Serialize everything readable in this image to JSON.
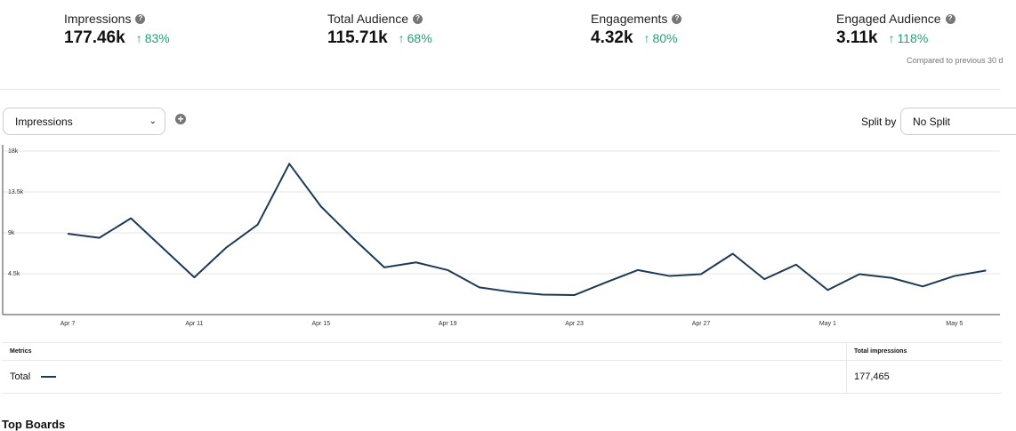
{
  "kpis": [
    {
      "label": "Impressions",
      "value": "177.46k",
      "change": "83%"
    },
    {
      "label": "Total Audience",
      "value": "115.71k",
      "change": "68%"
    },
    {
      "label": "Engagements",
      "value": "4.32k",
      "change": "80%"
    },
    {
      "label": "Engaged Audience",
      "value": "3.11k",
      "change": "118%"
    }
  ],
  "compared_note": "Compared to previous 30 d",
  "controls": {
    "metric_select": "Impressions",
    "split_label": "Split by",
    "split_select": "No Split"
  },
  "chart_data": {
    "type": "line",
    "title": "",
    "xlabel": "",
    "ylabel": "",
    "ylim": [
      0,
      18000
    ],
    "y_ticks": [
      "18k",
      "13.5k",
      "9k",
      "4.5k"
    ],
    "x_ticks": [
      "Apr 7",
      "Apr 11",
      "Apr 15",
      "Apr 19",
      "Apr 23",
      "Apr 27",
      "May 1",
      "May 5"
    ],
    "grid": true,
    "legend": "none",
    "x": [
      "Apr 7",
      "Apr 8",
      "Apr 9",
      "Apr 10",
      "Apr 11",
      "Apr 12",
      "Apr 13",
      "Apr 14",
      "Apr 15",
      "Apr 16",
      "Apr 17",
      "Apr 18",
      "Apr 19",
      "Apr 20",
      "Apr 21",
      "Apr 22",
      "Apr 23",
      "Apr 24",
      "Apr 25",
      "Apr 26",
      "Apr 27",
      "Apr 28",
      "Apr 29",
      "Apr 30",
      "May 1",
      "May 2",
      "May 3",
      "May 4",
      "May 5",
      "May 6"
    ],
    "series": [
      {
        "values": [
          8900,
          8450,
          10600,
          7350,
          4100,
          7350,
          9900,
          16600,
          11900,
          8450,
          5200,
          5750,
          4900,
          3000,
          2500,
          2200,
          2150,
          3550,
          4900,
          4250,
          4450,
          6700,
          3900,
          5500,
          2700,
          4450,
          4050,
          3100,
          4250,
          4850
        ]
      }
    ],
    "line_color": "#1f3a55"
  },
  "table": {
    "col_metrics": "Metrics",
    "col_total": "Total impressions",
    "row_label": "Total",
    "row_value": "177,465"
  },
  "section_title": "Top Boards",
  "colors": {
    "positive": "#1ba37a",
    "line": "#1f3a55"
  }
}
